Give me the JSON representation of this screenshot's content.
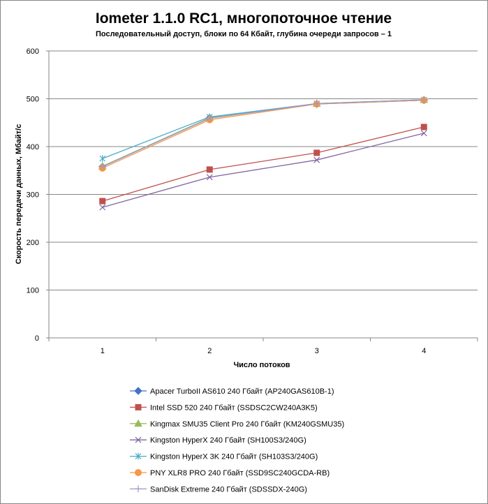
{
  "chart_data": {
    "type": "line",
    "title": "Iometer 1.1.0 RC1, многопоточное чтение",
    "subtitle": "Последовательный  доступ, блоки  по 64 Кбайт,  глубина очереди запросов  – 1",
    "xlabel": "Число  потоков",
    "ylabel": "Скорость  передачи данных, Мбайт/с",
    "categories": [
      "1",
      "2",
      "3",
      "4"
    ],
    "ylim": [
      0,
      600
    ],
    "yticks": [
      "0",
      "100",
      "200",
      "300",
      "400",
      "500",
      "600"
    ],
    "grid": true,
    "legend_position": "bottom",
    "series": [
      {
        "name": "Apacer TurboII AS610 240 Гбайт (AP240GAS610B-1)",
        "values": [
          358,
          460,
          489,
          497
        ],
        "color": "#4472C4",
        "marker": "diamond"
      },
      {
        "name": "Intel SSD 520 240 Гбайт (SSDSC2CW240A3K5)",
        "values": [
          286,
          352,
          387,
          441
        ],
        "color": "#C0504D",
        "marker": "square"
      },
      {
        "name": "Kingmax SMU35  Client Pro 240 Гбайт (KM240GSMU35)",
        "values": [
          359,
          460,
          490,
          498
        ],
        "color": "#9BBB59",
        "marker": "triangle"
      },
      {
        "name": "Kingston HyperX  240 Гбайт  (SH100S3/240G)",
        "values": [
          273,
          336,
          372,
          428
        ],
        "color": "#8064A2",
        "marker": "x"
      },
      {
        "name": "Kingston HyperX  3K 240 Гбайт (SH103S3/240G)",
        "values": [
          375,
          462,
          490,
          498
        ],
        "color": "#4BACC6",
        "marker": "star"
      },
      {
        "name": "PNY XLR8  PRO 240 Гбайт (SSD9SC240GCDA-RB)",
        "values": [
          355,
          456,
          489,
          497
        ],
        "color": "#F79646",
        "marker": "circle"
      },
      {
        "name": "SanDisk Extreme  240 Гбайт (SDSSDX-240G)",
        "values": [
          358,
          459,
          490,
          498
        ],
        "color": "#9999CC",
        "marker": "plus"
      }
    ]
  }
}
